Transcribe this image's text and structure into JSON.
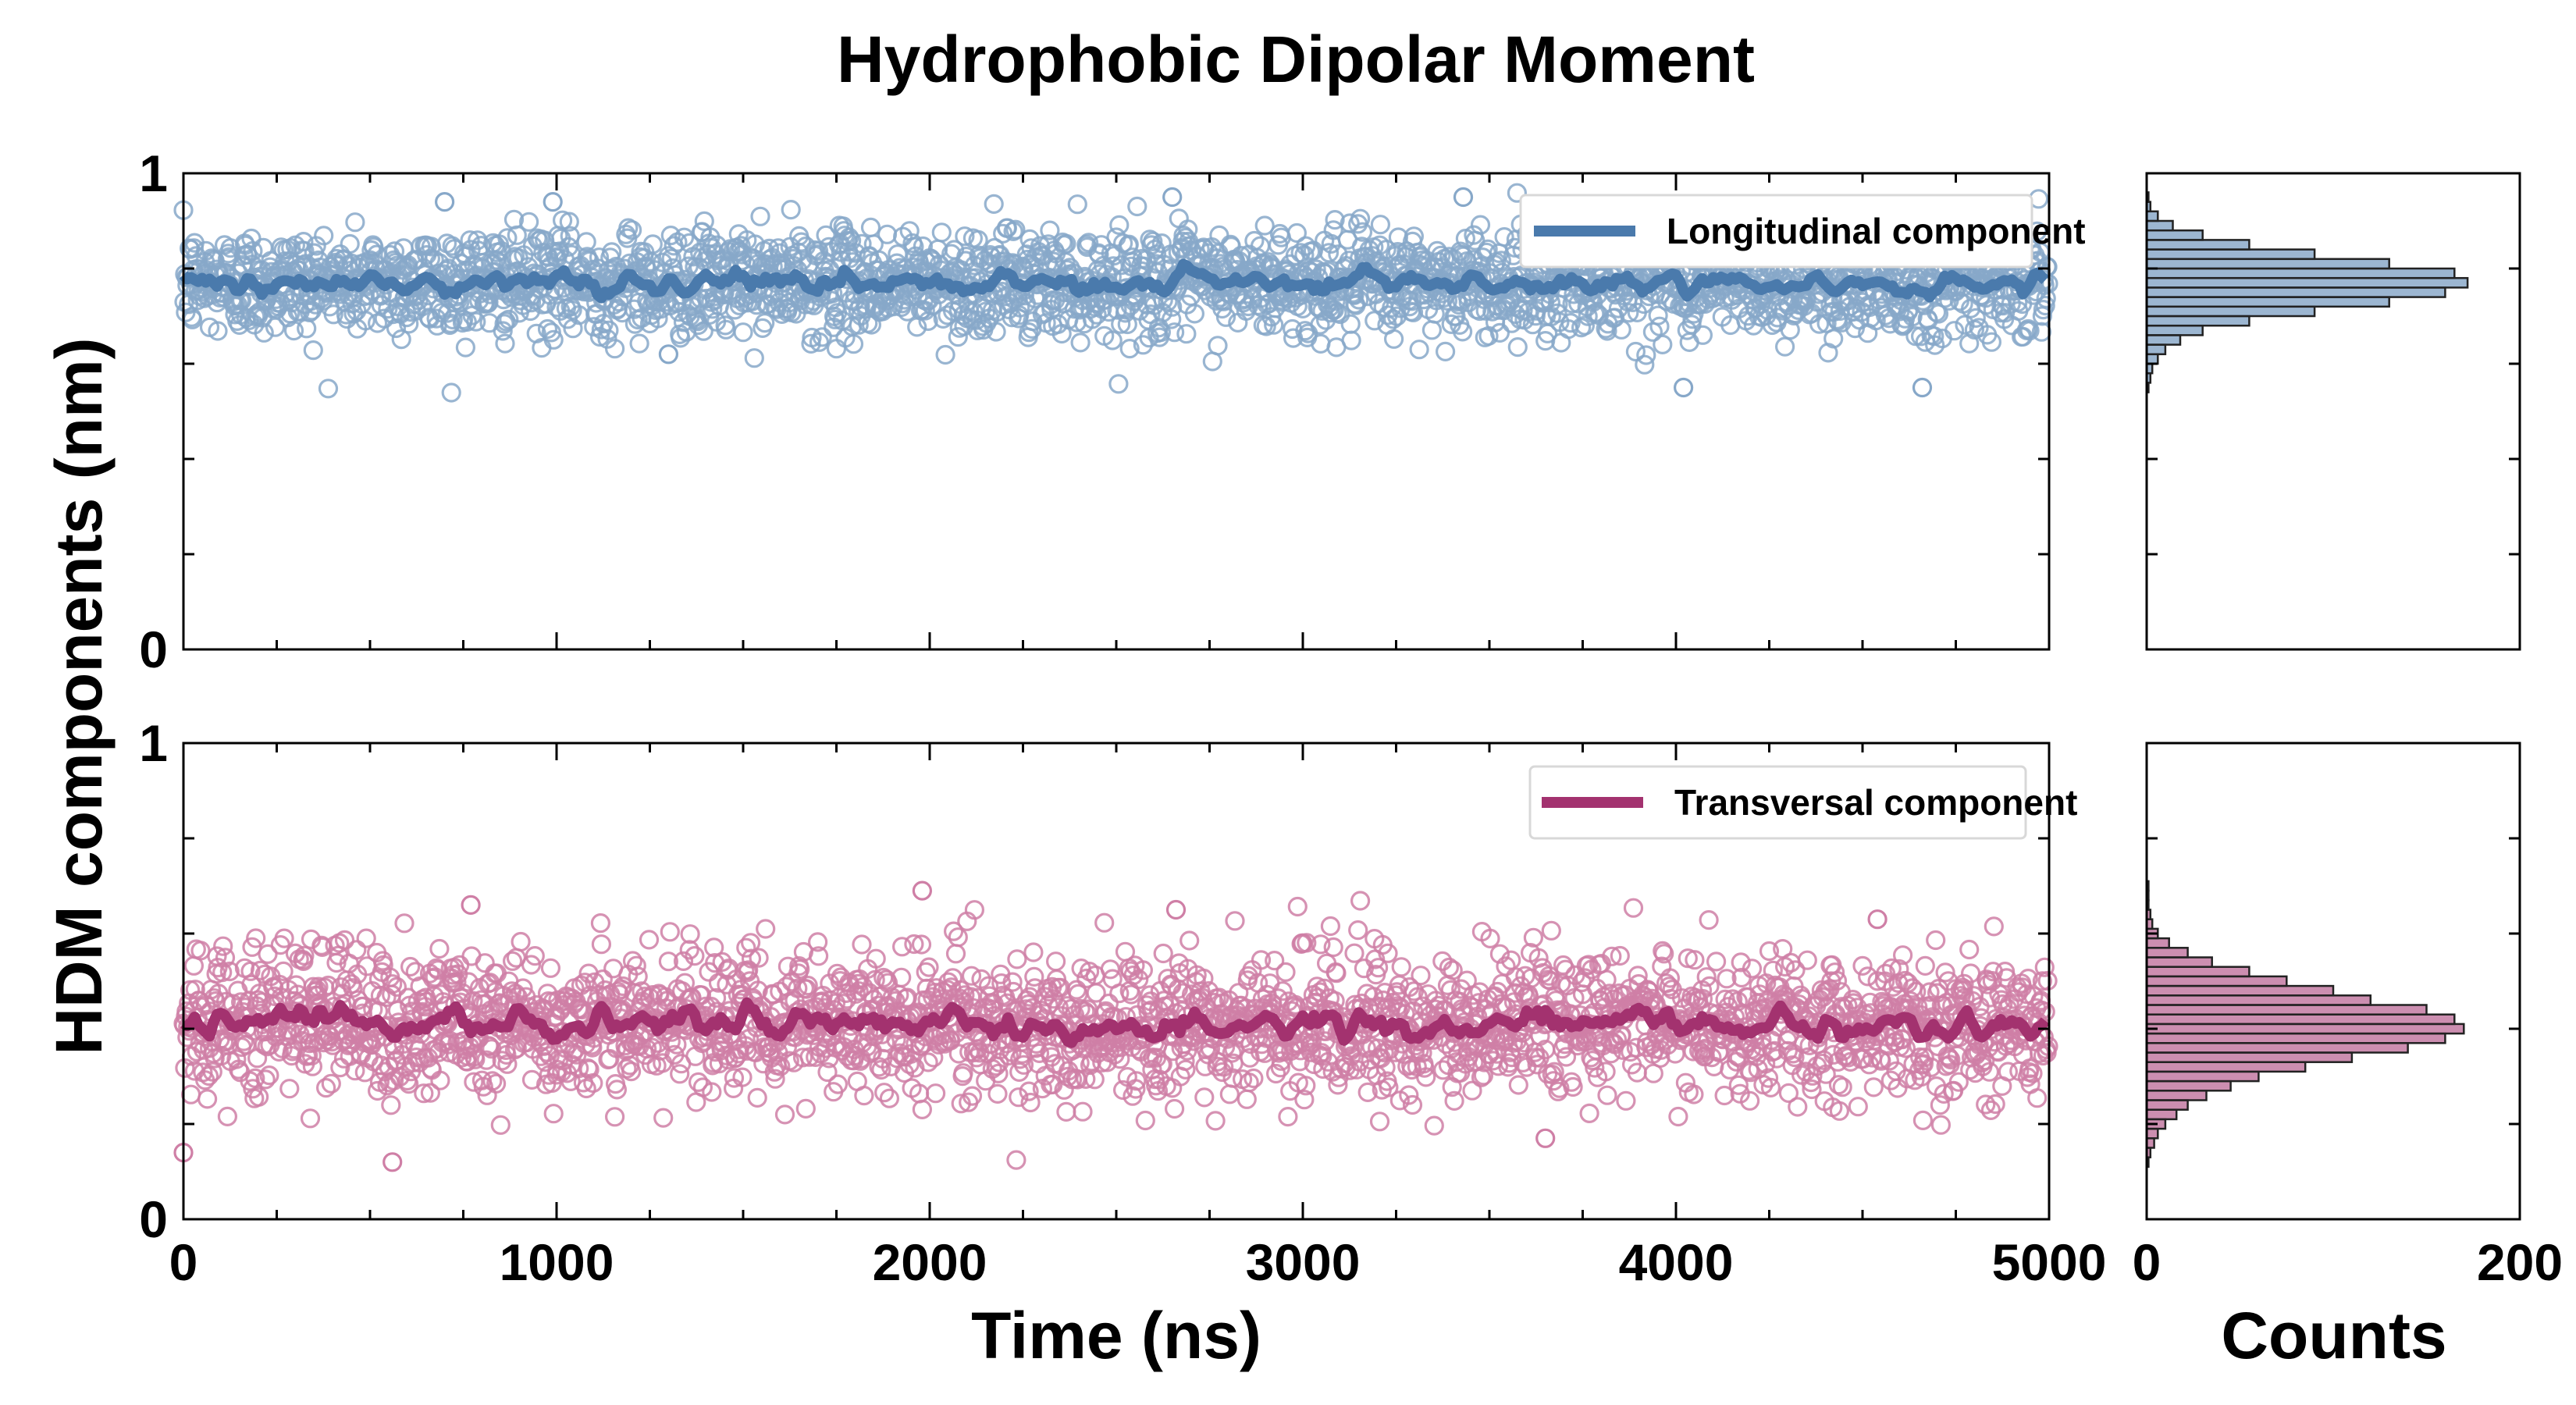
{
  "title": "Hydrophobic Dipolar Moment",
  "xlabel": "Time (ns)",
  "ylabel": "HDM components (nm)",
  "hist_xlabel": "Counts",
  "chart_data": [
    {
      "type": "scatter",
      "panel": "top",
      "title": "",
      "xlim": [
        0,
        5000
      ],
      "ylim": [
        0,
        1
      ],
      "x_ticks": [
        "0",
        "1000",
        "2000",
        "3000",
        "4000",
        "5000"
      ],
      "y_ticks": [
        "0",
        "1"
      ],
      "legend_label": "Longitudinal component",
      "legend_position": "top-right",
      "color": "#4a7aac",
      "scatter_color": "#87a8c9",
      "series": [
        {
          "name": "Longitudinal component",
          "mean": 0.77,
          "spread": 0.055,
          "samples": 2500,
          "notable_points": [
            [
              700,
              0.94
            ],
            [
              990,
              0.94
            ],
            [
              2650,
              0.95
            ],
            [
              3430,
              0.95
            ],
            [
              4020,
              0.55
            ],
            [
              4660,
              0.55
            ],
            [
              1300,
              0.62
            ]
          ]
        }
      ]
    },
    {
      "type": "scatter",
      "panel": "bottom",
      "xlim": [
        0,
        5000
      ],
      "ylim": [
        0,
        1
      ],
      "x_ticks": [
        "0",
        "1000",
        "2000",
        "3000",
        "4000",
        "5000"
      ],
      "y_ticks": [
        "0",
        "1"
      ],
      "legend_label": "Transversal component",
      "legend_position": "top-right",
      "color": "#a3326f",
      "scatter_color": "#cf7fa6",
      "series": [
        {
          "name": "Transversal component",
          "mean": 0.41,
          "spread": 0.075,
          "samples": 2500,
          "notable_points": [
            [
              770,
              0.66
            ],
            [
              1980,
              0.69
            ],
            [
              2660,
              0.65
            ],
            [
              4540,
              0.63
            ],
            [
              560,
              0.12
            ],
            [
              0,
              0.14
            ],
            [
              3650,
              0.17
            ]
          ]
        }
      ]
    },
    {
      "type": "bar",
      "panel": "top-histogram",
      "orientation": "horizontal",
      "xlim": [
        0,
        200
      ],
      "ylim": [
        0,
        1
      ],
      "x_ticks": [
        "0",
        "200"
      ],
      "color": "#4a7aac",
      "bin_centers": [
        0.55,
        0.57,
        0.59,
        0.61,
        0.63,
        0.65,
        0.67,
        0.69,
        0.71,
        0.73,
        0.75,
        0.77,
        0.79,
        0.81,
        0.83,
        0.85,
        0.87,
        0.89,
        0.91,
        0.93,
        0.95
      ],
      "values": [
        1,
        2,
        3,
        6,
        10,
        18,
        30,
        55,
        90,
        130,
        160,
        172,
        165,
        130,
        90,
        55,
        30,
        14,
        6,
        2,
        1
      ]
    },
    {
      "type": "bar",
      "panel": "bottom-histogram",
      "orientation": "horizontal",
      "xlim": [
        0,
        200
      ],
      "ylim": [
        0,
        1
      ],
      "x_ticks": [
        "0",
        "200"
      ],
      "color": "#a3326f",
      "bin_centers": [
        0.12,
        0.14,
        0.16,
        0.18,
        0.2,
        0.22,
        0.24,
        0.26,
        0.28,
        0.3,
        0.32,
        0.34,
        0.36,
        0.38,
        0.4,
        0.42,
        0.44,
        0.46,
        0.48,
        0.5,
        0.52,
        0.54,
        0.56,
        0.58,
        0.6,
        0.62,
        0.64,
        0.66,
        0.68,
        0.7
      ],
      "values": [
        1,
        2,
        4,
        6,
        10,
        16,
        22,
        32,
        45,
        60,
        85,
        110,
        140,
        160,
        170,
        165,
        150,
        120,
        100,
        75,
        55,
        35,
        22,
        12,
        6,
        3,
        2,
        1,
        1,
        1
      ]
    }
  ]
}
